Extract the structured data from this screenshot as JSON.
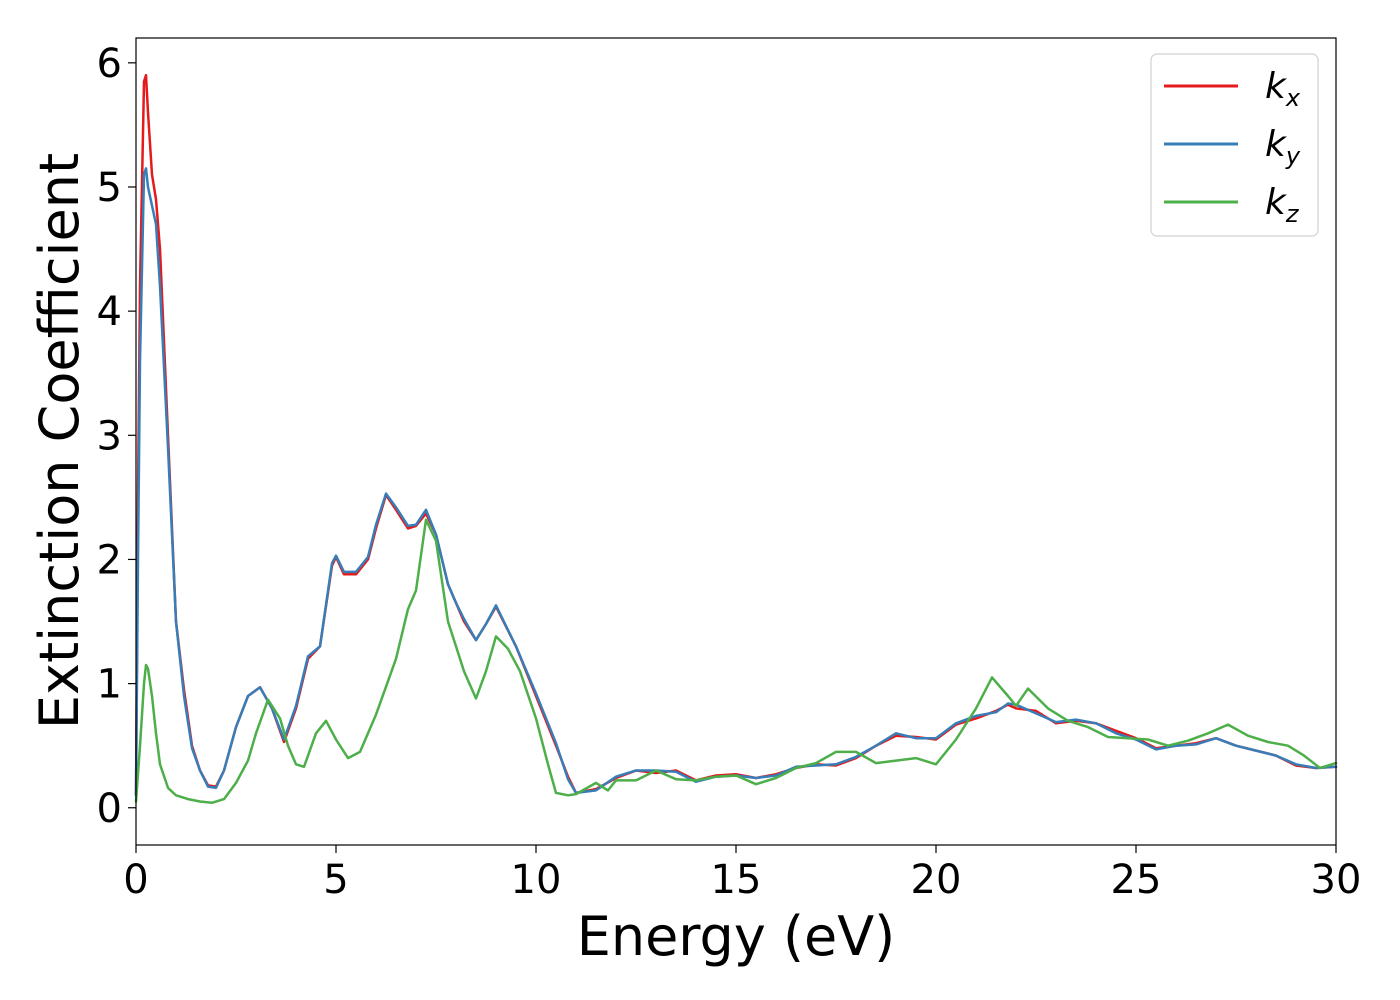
{
  "chart_data": {
    "type": "line",
    "title": "",
    "xlabel": "Energy (eV)",
    "ylabel": "Extinction Coefficient",
    "xlim": [
      0,
      30
    ],
    "ylim": [
      -0.3,
      6.2
    ],
    "xticks": [
      0,
      5,
      10,
      15,
      20,
      25,
      30
    ],
    "yticks": [
      0,
      1,
      2,
      3,
      4,
      5,
      6
    ],
    "xtick_labels": [
      "0",
      "5",
      "10",
      "15",
      "20",
      "25",
      "30"
    ],
    "ytick_labels": [
      "0",
      "1",
      "2",
      "3",
      "4",
      "5",
      "6"
    ],
    "grid": false,
    "legend_position": "top-right",
    "series": [
      {
        "name": "k_x",
        "label_base": "k",
        "label_sub": "x",
        "color": "#e41a1c",
        "x": [
          0,
          0.05,
          0.1,
          0.2,
          0.25,
          0.3,
          0.4,
          0.5,
          0.6,
          0.8,
          1.0,
          1.2,
          1.4,
          1.6,
          1.8,
          2.0,
          2.2,
          2.5,
          2.8,
          3.1,
          3.4,
          3.7,
          4.0,
          4.3,
          4.6,
          4.9,
          5.0,
          5.2,
          5.5,
          5.8,
          6.0,
          6.25,
          6.5,
          6.8,
          7.0,
          7.25,
          7.5,
          7.8,
          8.0,
          8.2,
          8.5,
          8.75,
          9.0,
          9.5,
          10.0,
          10.5,
          10.8,
          11.0,
          11.5,
          12.0,
          12.5,
          13.0,
          13.5,
          14.0,
          14.5,
          15.0,
          15.5,
          16.0,
          16.5,
          17.0,
          17.5,
          18.0,
          18.5,
          19.0,
          19.5,
          20.0,
          20.5,
          21.0,
          21.5,
          21.8,
          22.0,
          22.5,
          23.0,
          23.5,
          24.0,
          24.5,
          25.0,
          25.5,
          26.0,
          26.5,
          27.0,
          27.5,
          28.0,
          28.5,
          29.0,
          29.5,
          30.0
        ],
        "y": [
          0.1,
          2.5,
          4.2,
          5.85,
          5.9,
          5.6,
          5.1,
          4.9,
          4.5,
          3.0,
          1.5,
          0.95,
          0.5,
          0.3,
          0.18,
          0.17,
          0.3,
          0.65,
          0.9,
          0.97,
          0.8,
          0.53,
          0.8,
          1.2,
          1.3,
          1.95,
          2.02,
          1.88,
          1.88,
          2.0,
          2.25,
          2.52,
          2.4,
          2.25,
          2.27,
          2.37,
          2.2,
          1.8,
          1.65,
          1.5,
          1.35,
          1.48,
          1.62,
          1.3,
          0.9,
          0.5,
          0.25,
          0.12,
          0.15,
          0.24,
          0.3,
          0.28,
          0.3,
          0.22,
          0.26,
          0.27,
          0.24,
          0.27,
          0.32,
          0.35,
          0.34,
          0.4,
          0.5,
          0.58,
          0.57,
          0.55,
          0.67,
          0.72,
          0.78,
          0.83,
          0.8,
          0.78,
          0.68,
          0.7,
          0.68,
          0.62,
          0.56,
          0.48,
          0.5,
          0.52,
          0.56,
          0.5,
          0.46,
          0.42,
          0.34,
          0.32,
          0.33
        ]
      },
      {
        "name": "k_y",
        "label_base": "k",
        "label_sub": "y",
        "color": "#377eb8",
        "x": [
          0,
          0.05,
          0.1,
          0.2,
          0.25,
          0.3,
          0.4,
          0.5,
          0.6,
          0.8,
          1.0,
          1.2,
          1.4,
          1.6,
          1.8,
          2.0,
          2.2,
          2.5,
          2.8,
          3.1,
          3.4,
          3.7,
          4.0,
          4.3,
          4.6,
          4.9,
          5.0,
          5.2,
          5.5,
          5.8,
          6.0,
          6.25,
          6.5,
          6.8,
          7.0,
          7.25,
          7.5,
          7.8,
          8.0,
          8.2,
          8.5,
          8.75,
          9.0,
          9.5,
          10.0,
          10.5,
          10.8,
          11.0,
          11.5,
          12.0,
          12.5,
          13.0,
          13.5,
          14.0,
          14.5,
          15.0,
          15.5,
          16.0,
          16.5,
          17.0,
          17.5,
          18.0,
          18.5,
          19.0,
          19.5,
          20.0,
          20.5,
          21.0,
          21.5,
          21.8,
          22.0,
          22.5,
          23.0,
          23.5,
          24.0,
          24.5,
          25.0,
          25.5,
          26.0,
          26.5,
          27.0,
          27.5,
          28.0,
          28.5,
          29.0,
          29.5,
          30.0
        ],
        "y": [
          0.1,
          2.0,
          3.6,
          5.1,
          5.15,
          5.0,
          4.85,
          4.7,
          4.2,
          2.9,
          1.5,
          0.9,
          0.48,
          0.3,
          0.17,
          0.16,
          0.3,
          0.65,
          0.9,
          0.97,
          0.8,
          0.55,
          0.82,
          1.22,
          1.3,
          1.97,
          2.03,
          1.9,
          1.9,
          2.02,
          2.28,
          2.53,
          2.42,
          2.27,
          2.28,
          2.4,
          2.2,
          1.8,
          1.65,
          1.52,
          1.35,
          1.48,
          1.63,
          1.3,
          0.92,
          0.52,
          0.23,
          0.12,
          0.14,
          0.25,
          0.3,
          0.3,
          0.29,
          0.21,
          0.25,
          0.26,
          0.24,
          0.26,
          0.33,
          0.34,
          0.35,
          0.41,
          0.5,
          0.6,
          0.56,
          0.56,
          0.68,
          0.74,
          0.77,
          0.84,
          0.83,
          0.76,
          0.69,
          0.71,
          0.68,
          0.6,
          0.55,
          0.47,
          0.5,
          0.51,
          0.56,
          0.5,
          0.46,
          0.42,
          0.35,
          0.32,
          0.33
        ]
      },
      {
        "name": "k_z",
        "label_base": "k",
        "label_sub": "z",
        "color": "#4daf4a",
        "x": [
          0,
          0.1,
          0.2,
          0.25,
          0.3,
          0.4,
          0.5,
          0.6,
          0.8,
          1.0,
          1.3,
          1.6,
          1.9,
          2.2,
          2.5,
          2.8,
          3.0,
          3.3,
          3.6,
          3.8,
          4.0,
          4.2,
          4.5,
          4.75,
          5.0,
          5.3,
          5.6,
          6.0,
          6.5,
          6.8,
          7.0,
          7.25,
          7.5,
          7.8,
          8.0,
          8.2,
          8.5,
          8.75,
          9.0,
          9.3,
          9.6,
          10.0,
          10.3,
          10.5,
          10.8,
          11.0,
          11.5,
          11.8,
          12.0,
          12.5,
          13.0,
          13.5,
          14.0,
          14.5,
          15.0,
          15.5,
          16.0,
          16.5,
          17.0,
          17.5,
          18.0,
          18.5,
          19.0,
          19.5,
          20.0,
          20.5,
          21.0,
          21.4,
          21.8,
          22.0,
          22.3,
          22.8,
          23.3,
          23.8,
          24.3,
          24.8,
          25.3,
          25.8,
          26.3,
          26.8,
          27.3,
          27.8,
          28.3,
          28.8,
          29.2,
          29.6,
          30.0
        ],
        "y": [
          0.05,
          0.5,
          1.0,
          1.15,
          1.12,
          0.9,
          0.6,
          0.35,
          0.16,
          0.1,
          0.07,
          0.05,
          0.04,
          0.07,
          0.2,
          0.38,
          0.6,
          0.87,
          0.72,
          0.5,
          0.35,
          0.33,
          0.6,
          0.7,
          0.55,
          0.4,
          0.45,
          0.75,
          1.2,
          1.6,
          1.75,
          2.32,
          2.15,
          1.5,
          1.3,
          1.1,
          0.88,
          1.1,
          1.38,
          1.28,
          1.1,
          0.72,
          0.35,
          0.12,
          0.1,
          0.11,
          0.2,
          0.14,
          0.22,
          0.22,
          0.3,
          0.23,
          0.22,
          0.25,
          0.26,
          0.19,
          0.24,
          0.32,
          0.36,
          0.45,
          0.45,
          0.36,
          0.38,
          0.4,
          0.35,
          0.55,
          0.8,
          1.05,
          0.9,
          0.82,
          0.96,
          0.8,
          0.7,
          0.65,
          0.57,
          0.56,
          0.55,
          0.5,
          0.54,
          0.6,
          0.67,
          0.58,
          0.53,
          0.5,
          0.42,
          0.32,
          0.36
        ]
      }
    ]
  }
}
